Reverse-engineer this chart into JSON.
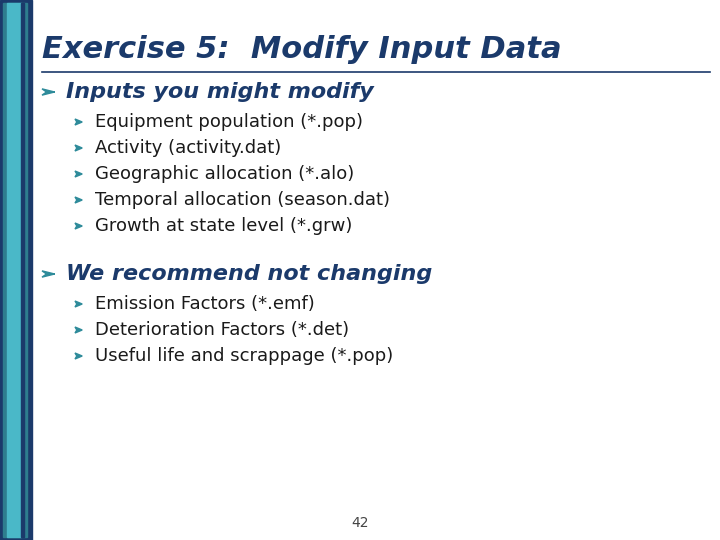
{
  "title": "Exercise 5:  Modify Input Data",
  "title_color": "#1b3a6b",
  "title_fontsize": 22,
  "bg_color": "#ffffff",
  "sidebar_dark": "#1b3a6b",
  "sidebar_mid": "#2e7d8e",
  "sidebar_light": "#4ab8c8",
  "section1_header": "Inputs you might modify",
  "section1_items": [
    "Equipment population (*.pop)",
    "Activity (activity.dat)",
    "Geographic allocation (*.alo)",
    "Temporal allocation (season.dat)",
    "Growth at state level (*.grw)"
  ],
  "section2_header": "We recommend not changing",
  "section2_items": [
    "Emission Factors (*.emf)",
    "Deterioration Factors (*.det)",
    "Useful life and scrappage (*.pop)"
  ],
  "header_color": "#1b3a6b",
  "item_color": "#1a1a1a",
  "bullet_color": "#2e8b9a",
  "header_fontsize": 16,
  "item_fontsize": 13,
  "page_number": "42",
  "line_color": "#1b3a6b"
}
